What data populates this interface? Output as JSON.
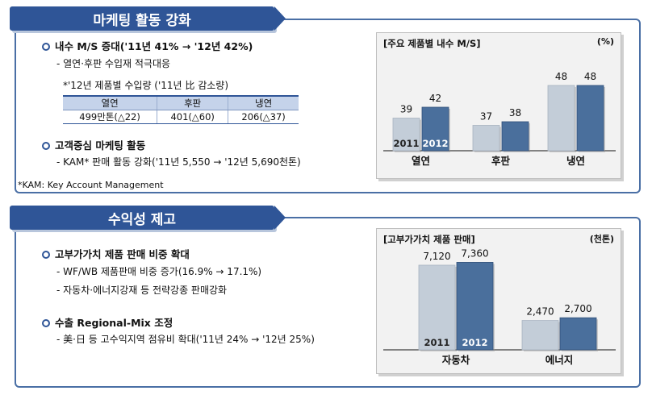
{
  "section1": {
    "header": "마케팅 활동 강화",
    "bullet1": "내수 M/S 증대('11년 41% → '12년 42%)",
    "bullet1_sub": "- 열연·후판 수입재 적극대응",
    "import_note": "*'12년 제품별 수입량 ('11년 比 감소량)",
    "import_table": {
      "headers": [
        "열연",
        "후판",
        "냉연"
      ],
      "values": [
        "499만톤(△22)",
        "401(△60)",
        "206(△37)"
      ]
    },
    "bullet2": "고객중심 마케팅 활동",
    "bullet2_sub": "- KAM* 판매 활동 강화('11년 5,550 → '12년 5,690천톤)",
    "footnote": "*KAM: Key Account Management"
  },
  "section2": {
    "header": "수익성 제고",
    "bullet1": "고부가가치 제품 판매 비중 확대",
    "bullet1_sub1": "- WF/WB 제품판매 비중 증가(16.9% → 17.1%)",
    "bullet1_sub2": "- 자동차·에너지강재 등 전략강종 판매강화",
    "bullet2": "수출 Regional-Mix 조정",
    "bullet2_sub": "- 美·日 등 고수익지역 점유비 확대('11년 24% → '12년 25%)"
  },
  "chart_data": [
    {
      "type": "bar",
      "title": "[주요 제품별 내수 M/S]",
      "unit": "(%)",
      "categories": [
        "열연",
        "후판",
        "냉연"
      ],
      "series": [
        {
          "name": "2011",
          "values": [
            39,
            37,
            48
          ]
        },
        {
          "name": "2012",
          "values": [
            42,
            38,
            48
          ]
        }
      ],
      "ylim": [
        30,
        50
      ],
      "colors": [
        "#c3cdd8",
        "#4a6f9c"
      ]
    },
    {
      "type": "bar",
      "title": "[고부가가치 제품 판매]",
      "unit": "(천톤)",
      "categories": [
        "자동차",
        "에너지"
      ],
      "series": [
        {
          "name": "2011",
          "values": [
            7120,
            2470
          ]
        },
        {
          "name": "2012",
          "values": [
            7360,
            2700
          ]
        }
      ],
      "ylim": [
        0,
        8000
      ],
      "colors": [
        "#c3cdd8",
        "#4a6f9c"
      ]
    }
  ]
}
